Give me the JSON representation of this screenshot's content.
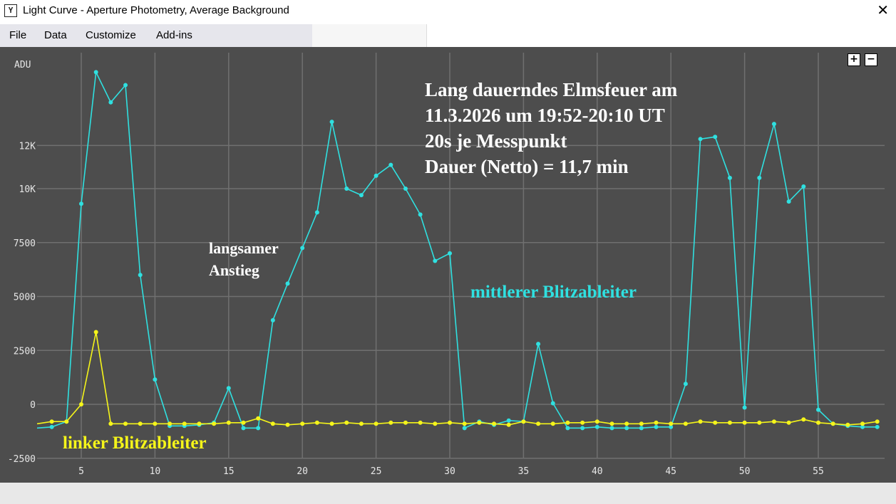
{
  "window": {
    "title": "Light Curve - Aperture Photometry, Average Background",
    "close_glyph": "✕"
  },
  "menu": [
    "File",
    "Data",
    "Customize",
    "Add-ins"
  ],
  "zoom": {
    "plus": "+",
    "minus": "−"
  },
  "chart_data": {
    "type": "line",
    "ylabel": "ADU",
    "xlim": [
      2.5,
      59
    ],
    "ylim": [
      -2500,
      15500
    ],
    "x_ticks": [
      5,
      10,
      15,
      20,
      25,
      30,
      35,
      40,
      45,
      50,
      55
    ],
    "y_ticks": [
      -2500,
      0,
      2500,
      5000,
      7500,
      10000,
      12000
    ],
    "y_tick_labels": [
      "-2500",
      "0",
      "2500",
      "5000",
      "7500",
      "10K",
      "12K"
    ],
    "grid": true,
    "colors": {
      "background": "#4d4d4d",
      "grid": "#707070",
      "text": "#e6e6e6"
    },
    "x": [
      2,
      3,
      4,
      5,
      6,
      7,
      8,
      9,
      10,
      11,
      12,
      13,
      14,
      15,
      16,
      17,
      18,
      19,
      20,
      21,
      22,
      23,
      24,
      25,
      26,
      27,
      28,
      29,
      30,
      31,
      32,
      33,
      34,
      35,
      36,
      37,
      38,
      39,
      40,
      41,
      42,
      43,
      44,
      45,
      46,
      47,
      48,
      49,
      50,
      51,
      52,
      53,
      54,
      55,
      56,
      57,
      58,
      59
    ],
    "series": [
      {
        "name": "mittlerer Blitzableiter",
        "color": "#2fe0e0",
        "values": [
          -1100,
          -1050,
          -800,
          9300,
          15400,
          14000,
          14800,
          6000,
          1150,
          -1000,
          -1000,
          -950,
          -850,
          750,
          -1100,
          -1100,
          3900,
          5600,
          7250,
          8900,
          13100,
          10000,
          9700,
          10600,
          11100,
          10000,
          8800,
          6650,
          7000,
          -1100,
          -800,
          -950,
          -750,
          -800,
          2800,
          50,
          -1100,
          -1100,
          -1050,
          -1100,
          -1100,
          -1100,
          -1050,
          -1050,
          950,
          12300,
          12400,
          10500,
          -150,
          10500,
          13000,
          9400,
          10100,
          -250,
          -900,
          -1000,
          -1050,
          -1050
        ]
      },
      {
        "name": "linker Blitzableiter",
        "color": "#f5f51a",
        "values": [
          -900,
          -800,
          -800,
          0,
          3350,
          -900,
          -900,
          -900,
          -900,
          -900,
          -900,
          -900,
          -900,
          -850,
          -850,
          -650,
          -900,
          -950,
          -900,
          -850,
          -900,
          -850,
          -900,
          -900,
          -850,
          -850,
          -850,
          -900,
          -850,
          -900,
          -850,
          -900,
          -950,
          -800,
          -900,
          -900,
          -850,
          -850,
          -800,
          -900,
          -900,
          -900,
          -850,
          -900,
          -900,
          -800,
          -850,
          -850,
          -850,
          -850,
          -800,
          -850,
          -700,
          -850,
          -900,
          -950,
          -900,
          -800
        ]
      }
    ],
    "annotations": [
      {
        "id": "title",
        "lines": [
          "Lang dauerndes Elmsfeuer am",
          "11.3.2026 um 19:52-20:10 UT",
          "20s je Messpunkt",
          "Dauer (Netto) = 11,7 min"
        ],
        "color": "#ffffff"
      },
      {
        "id": "rise",
        "lines": [
          "langsamer",
          "Anstieg"
        ],
        "color": "#ffffff"
      },
      {
        "id": "middle",
        "lines": [
          "mittlerer Blitzableiter"
        ],
        "color": "#2fe0e0"
      },
      {
        "id": "left",
        "lines": [
          "linker Blitzableiter"
        ],
        "color": "#f5f51a"
      }
    ]
  }
}
